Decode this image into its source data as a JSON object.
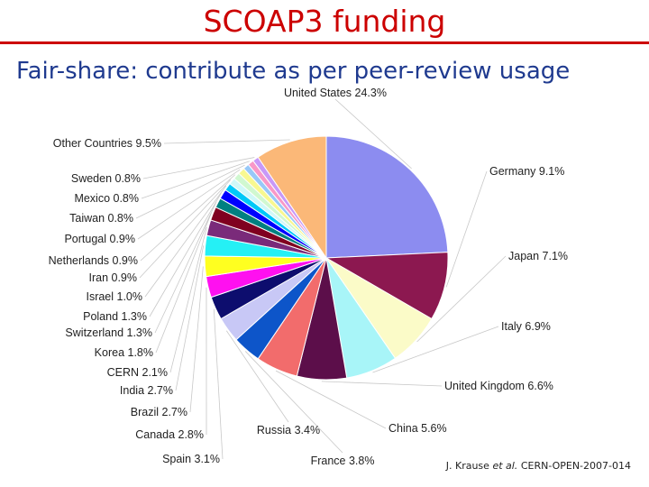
{
  "slide": {
    "title": "SCOAP3 funding",
    "subtitle": "Fair-share: contribute as per peer-review usage",
    "citation": {
      "author": "J. Krause",
      "etal": "et al.",
      "ref": "CERN-OPEN-2007-014"
    }
  },
  "chart_data": {
    "type": "pie",
    "title": "",
    "unit": "%",
    "slices": [
      {
        "label": "United States",
        "value": 24.3,
        "color": "#8c8cf0"
      },
      {
        "label": "Germany",
        "value": 9.1,
        "color": "#8c1850"
      },
      {
        "label": "Japan",
        "value": 7.1,
        "color": "#fbfbc8"
      },
      {
        "label": "Italy",
        "value": 6.9,
        "color": "#a8f5f8"
      },
      {
        "label": "United Kingdom",
        "value": 6.6,
        "color": "#5c0e4a"
      },
      {
        "label": "China",
        "value": 5.6,
        "color": "#f26c6c"
      },
      {
        "label": "France",
        "value": 3.8,
        "color": "#0d55c9"
      },
      {
        "label": "Russia",
        "value": 3.4,
        "color": "#c8c8f6"
      },
      {
        "label": "Spain",
        "value": 3.1,
        "color": "#0d0d6e"
      },
      {
        "label": "Canada",
        "value": 2.8,
        "color": "#ff10f0"
      },
      {
        "label": "Brazil",
        "value": 2.7,
        "color": "#ffff20"
      },
      {
        "label": "India",
        "value": 2.7,
        "color": "#25f0f5"
      },
      {
        "label": "CERN",
        "value": 2.1,
        "color": "#7a2a7a"
      },
      {
        "label": "Korea",
        "value": 1.8,
        "color": "#800020"
      },
      {
        "label": "Switzerland",
        "value": 1.3,
        "color": "#008080"
      },
      {
        "label": "Poland",
        "value": 1.3,
        "color": "#0000ff"
      },
      {
        "label": "Israel",
        "value": 1.0,
        "color": "#00c8f8"
      },
      {
        "label": "Iran",
        "value": 0.9,
        "color": "#d0f8f8"
      },
      {
        "label": "Netherlands",
        "value": 0.9,
        "color": "#d0f8d0"
      },
      {
        "label": "Portugal",
        "value": 0.9,
        "color": "#f8f890"
      },
      {
        "label": "Taiwan",
        "value": 0.8,
        "color": "#98c8f8"
      },
      {
        "label": "Mexico",
        "value": 0.8,
        "color": "#f898c8"
      },
      {
        "label": "Sweden",
        "value": 0.8,
        "color": "#c898f8"
      },
      {
        "label": "Other Countries",
        "value": 9.5,
        "color": "#fbb878"
      }
    ]
  }
}
